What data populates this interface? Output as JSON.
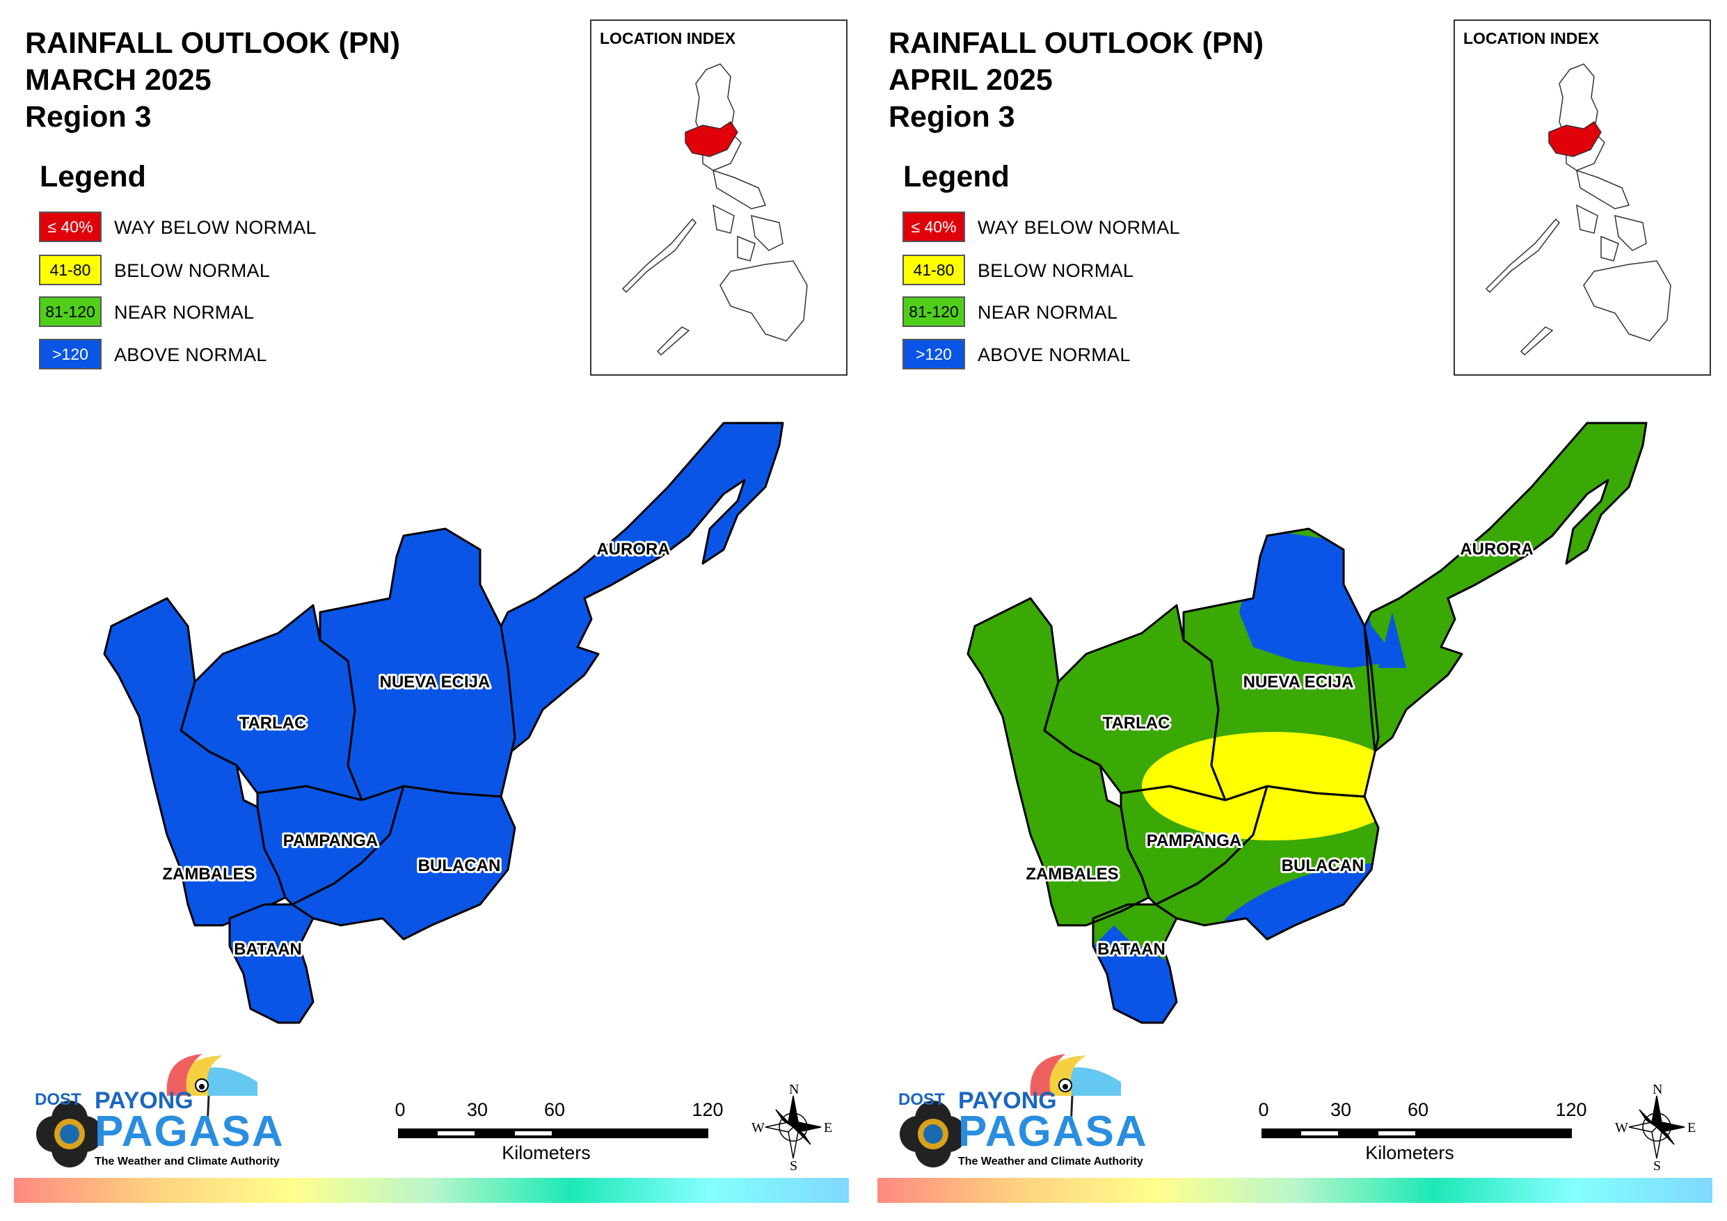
{
  "panels": [
    {
      "title_lines": [
        "RAINFALL OUTLOOK (PN)",
        "MARCH 2025",
        "Region 3"
      ],
      "legend_title": "Legend",
      "legend": [
        {
          "swatch_text": "≤ 40%",
          "label": "WAY BELOW NORMAL",
          "color": "#e0000a",
          "text_color": "#ffffff"
        },
        {
          "swatch_text": "41-80",
          "label": "BELOW NORMAL",
          "color": "#ffff00",
          "text_color": "#000000"
        },
        {
          "swatch_text": "81-120",
          "label": "NEAR NORMAL",
          "color": "#4fcf1a",
          "text_color": "#000000"
        },
        {
          "swatch_text": ">120",
          "label": "ABOVE NORMAL",
          "color": "#0a55e6",
          "text_color": "#ffffff"
        }
      ],
      "location_index": "LOCATION INDEX",
      "provinces": [
        "AURORA",
        "NUEVA ECIJA",
        "TARLAC",
        "PAMPANGA",
        "BULACAN",
        "ZAMBALES",
        "BATAAN"
      ],
      "rainfall_category": "ABOVE NORMAL"
    },
    {
      "title_lines": [
        "RAINFALL OUTLOOK (PN)",
        "APRIL 2025",
        "Region 3"
      ],
      "legend_title": "Legend",
      "legend": [
        {
          "swatch_text": "≤ 40%",
          "label": "WAY BELOW NORMAL",
          "color": "#e0000a",
          "text_color": "#ffffff"
        },
        {
          "swatch_text": "41-80",
          "label": "BELOW NORMAL",
          "color": "#ffff00",
          "text_color": "#000000"
        },
        {
          "swatch_text": "81-120",
          "label": "NEAR NORMAL",
          "color": "#4fcf1a",
          "text_color": "#000000"
        },
        {
          "swatch_text": ">120",
          "label": "ABOVE NORMAL",
          "color": "#0a55e6",
          "text_color": "#ffffff"
        }
      ],
      "location_index": "LOCATION INDEX",
      "provinces": [
        "AURORA",
        "NUEVA ECIJA",
        "TARLAC",
        "PAMPANGA",
        "BULACAN",
        "ZAMBALES",
        "BATAAN"
      ],
      "rainfall_category": "NEAR NORMAL"
    }
  ],
  "map_colors": {
    "above_normal": "#0a55e6",
    "near_normal": "#3aa805",
    "below_normal": "#ffff00",
    "highlight_red": "#e0000a"
  },
  "scale": {
    "ticks": [
      "0",
      "30",
      "60",
      "120"
    ],
    "units": "Kilometers"
  },
  "compass": {
    "n": "N",
    "s": "S",
    "e": "E",
    "w": "W"
  },
  "logo": {
    "agency": "DOST",
    "program": "PAYONG",
    "name": "PAGASA",
    "tagline": "The Weather and Climate Authority"
  }
}
